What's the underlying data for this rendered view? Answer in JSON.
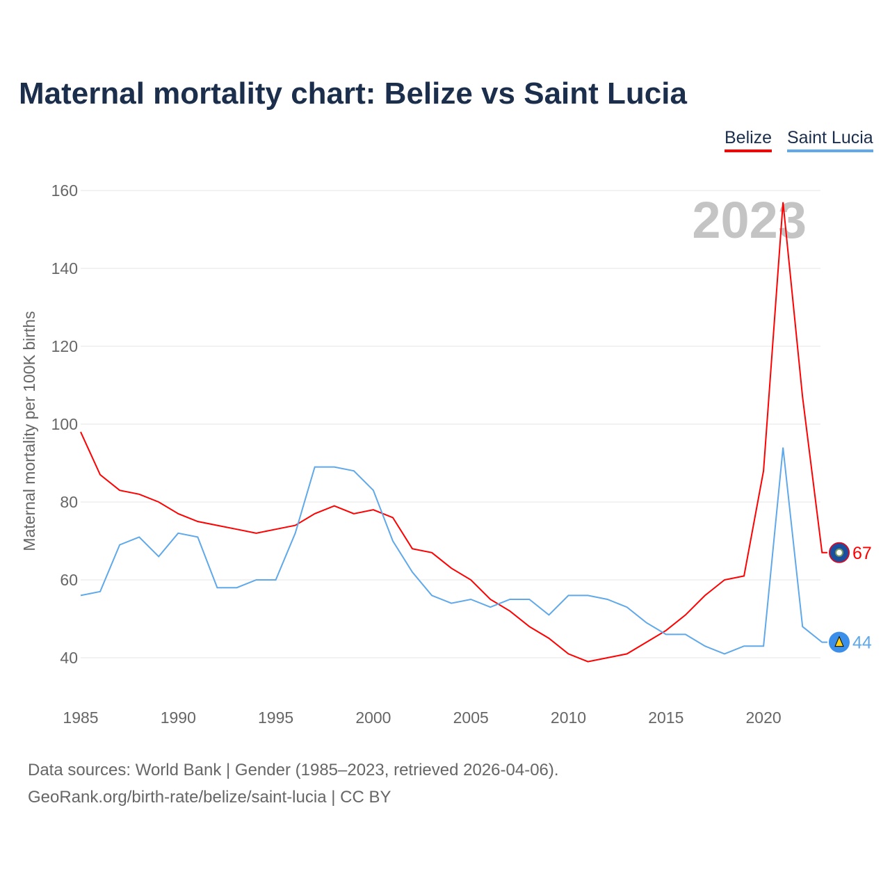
{
  "title": "Maternal mortality chart: Belize vs Saint Lucia",
  "source_line1": "Data sources: World Bank | Gender (1985–2023, retrieved 2026-04-06).",
  "source_line2": "GeoRank.org/birth-rate/belize/saint-lucia | CC BY",
  "chart_data": {
    "type": "line",
    "title": "Maternal mortality chart: Belize vs Saint Lucia",
    "ylabel": "Maternal mortality per 100K births",
    "xlabel": "",
    "year_watermark": "2023",
    "ylim": [
      30,
      165
    ],
    "xlim": [
      1985,
      2023
    ],
    "yticks": [
      40,
      60,
      80,
      100,
      120,
      140,
      160
    ],
    "xticks": [
      1985,
      1990,
      1995,
      2000,
      2005,
      2010,
      2015,
      2020
    ],
    "grid": true,
    "legend_position": "top-right",
    "x": [
      1985,
      1986,
      1987,
      1988,
      1989,
      1990,
      1991,
      1992,
      1993,
      1994,
      1995,
      1996,
      1997,
      1998,
      1999,
      2000,
      2001,
      2002,
      2003,
      2004,
      2005,
      2006,
      2007,
      2008,
      2009,
      2010,
      2011,
      2012,
      2013,
      2014,
      2015,
      2016,
      2017,
      2018,
      2019,
      2020,
      2021,
      2022,
      2023
    ],
    "series": [
      {
        "name": "Belize",
        "color": "#ff0000",
        "end_label": "67",
        "values": [
          98,
          87,
          83,
          82,
          80,
          77,
          75,
          74,
          73,
          72,
          73,
          74,
          77,
          79,
          77,
          78,
          76,
          68,
          67,
          63,
          60,
          55,
          52,
          48,
          45,
          41,
          39,
          40,
          41,
          44,
          47,
          51,
          56,
          60,
          61,
          88,
          157,
          107,
          67
        ]
      },
      {
        "name": "Saint Lucia",
        "color": "#5fa8ea",
        "end_label": "44",
        "values": [
          56,
          57,
          69,
          71,
          66,
          72,
          71,
          58,
          58,
          60,
          60,
          72,
          89,
          89,
          88,
          83,
          70,
          62,
          56,
          54,
          55,
          53,
          55,
          55,
          51,
          56,
          56,
          55,
          53,
          49,
          46,
          46,
          43,
          41,
          43,
          43,
          94,
          48,
          44
        ]
      }
    ]
  }
}
